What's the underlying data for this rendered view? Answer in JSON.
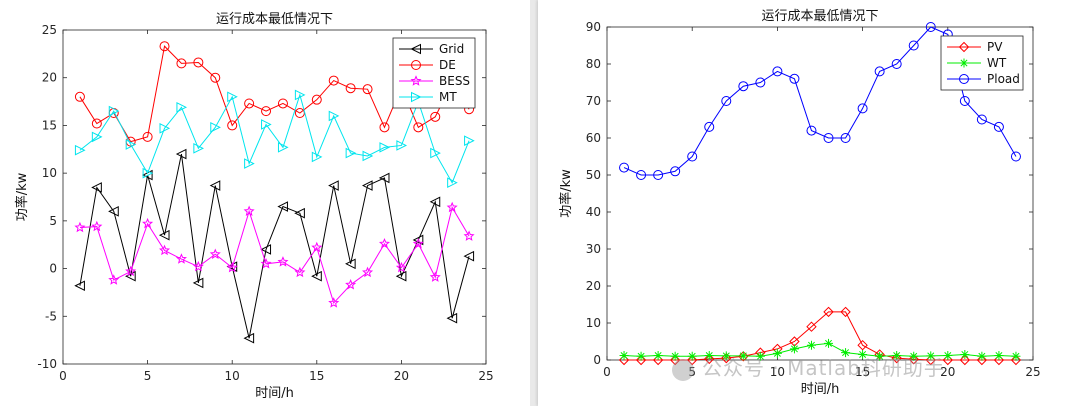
{
  "chart_data": [
    {
      "type": "line",
      "title": "运行成本最低情况下",
      "xlabel": "时间/h",
      "ylabel": "功率/kw",
      "xlim": [
        0,
        25
      ],
      "ylim": [
        -10,
        25
      ],
      "xticks": [
        0,
        5,
        10,
        15,
        20,
        25
      ],
      "yticks": [
        -10,
        -5,
        0,
        5,
        10,
        15,
        20,
        25
      ],
      "grid": false,
      "legend_position": "top-right",
      "x": [
        1,
        2,
        3,
        4,
        5,
        6,
        7,
        8,
        9,
        10,
        11,
        12,
        13,
        14,
        15,
        16,
        17,
        18,
        19,
        20,
        21,
        22,
        23,
        24
      ],
      "series": [
        {
          "name": "Grid",
          "color": "#000000",
          "marker": "triangle-left",
          "values": [
            -1.8,
            8.5,
            6.0,
            -0.8,
            9.8,
            3.5,
            12.0,
            -1.5,
            8.7,
            0.2,
            -7.3,
            2.0,
            6.5,
            5.8,
            -0.8,
            8.7,
            0.5,
            8.7,
            9.5,
            -0.8,
            3.0,
            7.0,
            -5.2,
            1.3
          ]
        },
        {
          "name": "DE",
          "color": "#ff0000",
          "marker": "circle",
          "values": [
            18.0,
            15.2,
            16.3,
            13.3,
            13.8,
            23.3,
            21.5,
            21.6,
            20.0,
            15.0,
            17.3,
            16.5,
            17.3,
            16.3,
            17.7,
            19.7,
            18.9,
            18.8,
            14.8,
            19.0,
            14.8,
            15.9,
            19.5,
            16.7
          ]
        },
        {
          "name": "BESS",
          "color": "#ff00ff",
          "marker": "star",
          "values": [
            4.3,
            4.4,
            -1.2,
            -0.3,
            4.7,
            1.9,
            1.0,
            0.2,
            1.5,
            0.1,
            6.0,
            0.5,
            0.7,
            -0.4,
            2.2,
            -3.6,
            -1.7,
            -0.4,
            2.6,
            0.1,
            2.6,
            -0.9,
            6.4,
            3.4
          ]
        },
        {
          "name": "MT",
          "color": "#00e5ee",
          "marker": "triangle-right",
          "values": [
            12.4,
            13.8,
            16.5,
            13.0,
            10.0,
            14.7,
            16.9,
            12.6,
            14.8,
            18.0,
            11.0,
            15.1,
            12.7,
            18.2,
            11.7,
            16.0,
            12.1,
            11.8,
            12.7,
            12.9,
            17.5,
            12.1,
            9.0,
            13.4
          ]
        }
      ]
    },
    {
      "type": "line",
      "title": "运行成本最低情况下",
      "xlabel": "时间/h",
      "ylabel": "功率/kw",
      "xlim": [
        0,
        25
      ],
      "ylim": [
        0,
        90
      ],
      "xticks": [
        0,
        5,
        10,
        15,
        20,
        25
      ],
      "yticks": [
        0,
        10,
        20,
        30,
        40,
        50,
        60,
        70,
        80,
        90
      ],
      "grid": false,
      "legend_position": "top-right",
      "x": [
        1,
        2,
        3,
        4,
        5,
        6,
        7,
        8,
        9,
        10,
        11,
        12,
        13,
        14,
        15,
        16,
        17,
        18,
        19,
        20,
        21,
        22,
        23,
        24
      ],
      "series": [
        {
          "name": "PV",
          "color": "#ff0000",
          "marker": "diamond",
          "values": [
            0,
            0,
            0,
            0,
            0,
            0.3,
            0.5,
            1.0,
            2.0,
            3.0,
            5.0,
            9.0,
            13.0,
            13.0,
            4.0,
            1.5,
            0.5,
            0.2,
            0,
            0,
            0,
            0,
            0,
            0
          ]
        },
        {
          "name": "WT",
          "color": "#00ee00",
          "marker": "asterisk",
          "values": [
            1.2,
            1.0,
            1.2,
            1.0,
            1.0,
            1.2,
            1.1,
            1.1,
            1.0,
            1.8,
            3.0,
            4.0,
            4.5,
            2.0,
            1.5,
            1.0,
            1.2,
            1.0,
            1.1,
            1.2,
            1.5,
            1.0,
            1.2,
            1.0
          ]
        },
        {
          "name": "Pload",
          "color": "#0000ff",
          "marker": "circle",
          "values": [
            52,
            50,
            50,
            51,
            55,
            63,
            70,
            74,
            75,
            78,
            76,
            62,
            60,
            60,
            68,
            78,
            80,
            85,
            90,
            88,
            70,
            65,
            63,
            55
          ]
        }
      ]
    }
  ],
  "watermark": {
    "text": "公众号 · Matlab科研助手"
  }
}
